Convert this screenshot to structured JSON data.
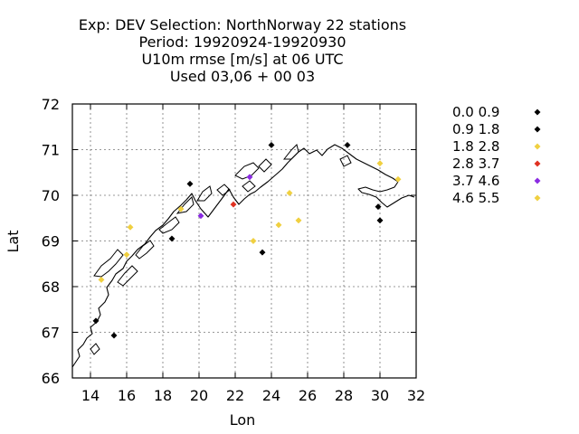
{
  "chart_data": {
    "type": "scatter",
    "title_lines": [
      "Exp: DEV   Selection: NorthNorway     22 stations",
      "Period: 19920924-19920930",
      "U10m rmse [m/s] at  06 UTC",
      "Used  03,06  + 00 03"
    ],
    "xlabel": "Lon",
    "ylabel": "Lat",
    "xlim": [
      13,
      32
    ],
    "ylim": [
      66,
      72
    ],
    "xticks": [
      14,
      16,
      18,
      20,
      22,
      24,
      26,
      28,
      30,
      32
    ],
    "yticks": [
      66,
      67,
      68,
      69,
      70,
      71,
      72
    ],
    "grid": true,
    "legend_position": "right",
    "series": [
      {
        "name": "0.0 0.9",
        "color": "#000000",
        "points": [
          [
            24.0,
            71.1
          ],
          [
            28.2,
            71.1
          ]
        ]
      },
      {
        "name": "0.9 1.8",
        "color": "#000000",
        "points": [
          [
            14.3,
            67.25
          ],
          [
            15.3,
            66.93
          ],
          [
            18.5,
            69.05
          ],
          [
            19.5,
            70.25
          ],
          [
            23.5,
            68.75
          ],
          [
            29.9,
            69.75
          ],
          [
            30.0,
            69.45
          ]
        ]
      },
      {
        "name": "1.8 2.8",
        "color": "#f0d040",
        "points": [
          [
            14.6,
            68.15
          ],
          [
            16.2,
            69.3
          ],
          [
            19.0,
            69.7
          ],
          [
            23.0,
            69.0
          ],
          [
            24.4,
            69.35
          ],
          [
            25.0,
            70.05
          ],
          [
            25.5,
            69.45
          ],
          [
            30.0,
            70.7
          ],
          [
            31.0,
            70.35
          ]
        ]
      },
      {
        "name": "2.8 3.7",
        "color": "#e03020",
        "points": [
          [
            21.9,
            69.8
          ]
        ]
      },
      {
        "name": "3.7 4.6",
        "color": "#8a2be2",
        "points": [
          [
            20.1,
            69.55
          ],
          [
            22.8,
            70.4
          ]
        ]
      },
      {
        "name": "4.6 5.5",
        "color": "#f0d040",
        "points": [
          [
            16.0,
            68.7
          ]
        ]
      }
    ]
  }
}
